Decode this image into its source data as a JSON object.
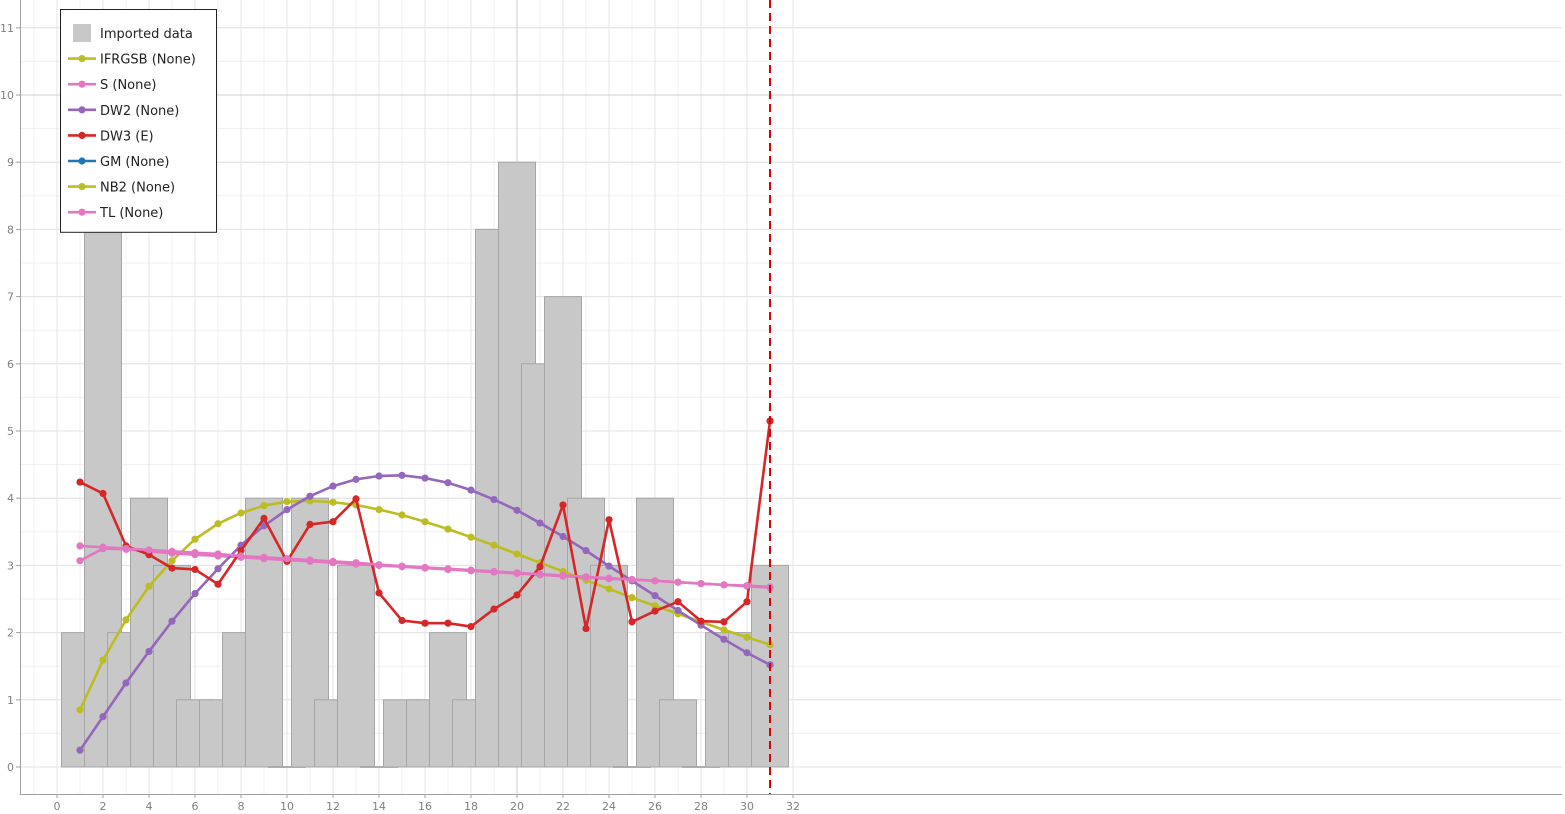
{
  "chart_data": {
    "type": "bar",
    "xlim": [
      -8,
      32
    ],
    "ylim": [
      -0.4,
      11.4
    ],
    "x_ticks": [
      0,
      2,
      4,
      6,
      8,
      10,
      12,
      14,
      16,
      18,
      20,
      22,
      24,
      26,
      28,
      30,
      32
    ],
    "y_ticks": [
      0,
      1,
      2,
      3,
      4,
      5,
      6,
      7,
      8,
      9,
      10,
      11
    ],
    "grid": true,
    "legend_position": "top-left",
    "bars": {
      "name": "Imported data",
      "color": "#c8c8c8",
      "x": [
        1,
        2,
        3,
        4,
        5,
        6,
        7,
        8,
        9,
        10,
        11,
        12,
        13,
        14,
        15,
        16,
        17,
        18,
        19,
        20,
        21,
        22,
        23,
        24,
        25,
        26,
        27,
        28,
        29,
        30,
        31
      ],
      "values": [
        2,
        8,
        2,
        4,
        3,
        1,
        1,
        2,
        4,
        0,
        4,
        1,
        3,
        0,
        1,
        1,
        2,
        1,
        8,
        9,
        6,
        7,
        4,
        3,
        0,
        4,
        1,
        0,
        2,
        2,
        3
      ]
    },
    "series": [
      {
        "name": "IFRGSB (None)",
        "color": "#bcbd22",
        "x": [
          1,
          2,
          3,
          4,
          5,
          6,
          7,
          8,
          9,
          10,
          11,
          12,
          13,
          14,
          15,
          16,
          17,
          18,
          19,
          20,
          21,
          22,
          23,
          24,
          25,
          26,
          27,
          28,
          29,
          30,
          31
        ],
        "values": [
          0.85,
          1.59,
          2.19,
          2.69,
          3.07,
          3.39,
          3.62,
          3.78,
          3.89,
          3.95,
          3.96,
          3.94,
          3.9,
          3.83,
          3.75,
          3.65,
          3.54,
          3.42,
          3.3,
          3.17,
          3.04,
          2.91,
          2.78,
          2.65,
          2.52,
          2.4,
          2.28,
          2.16,
          2.04,
          1.93,
          1.82
        ]
      },
      {
        "name": "S (None)",
        "color": "#e377c2",
        "x": [
          1,
          2,
          3,
          4,
          5,
          6,
          7,
          8,
          9,
          10,
          11,
          12,
          13,
          14,
          15,
          16,
          17,
          18,
          19,
          20,
          21,
          22,
          23,
          24,
          25,
          26,
          27,
          28,
          29,
          30,
          31
        ],
        "values": [
          3.07,
          3.25,
          3.24,
          3.21,
          3.18,
          3.16,
          3.14,
          3.12,
          3.1,
          3.08,
          3.06,
          3.04,
          3.02,
          3.0,
          2.98,
          2.96,
          2.94,
          2.92,
          2.9,
          2.88,
          2.86,
          2.84,
          2.82,
          2.8,
          2.79,
          2.77,
          2.75,
          2.73,
          2.71,
          2.69,
          2.67
        ]
      },
      {
        "name": "DW2 (None)",
        "color": "#9467bd",
        "x": [
          1,
          2,
          3,
          4,
          5,
          6,
          7,
          8,
          9,
          10,
          11,
          12,
          13,
          14,
          15,
          16,
          17,
          18,
          19,
          20,
          21,
          22,
          23,
          24,
          25,
          26,
          27,
          28,
          29,
          30,
          31
        ],
        "values": [
          0.25,
          0.75,
          1.25,
          1.72,
          2.17,
          2.58,
          2.95,
          3.3,
          3.59,
          3.83,
          4.03,
          4.18,
          4.28,
          4.33,
          4.34,
          4.3,
          4.23,
          4.12,
          3.98,
          3.82,
          3.63,
          3.43,
          3.22,
          2.99,
          2.77,
          2.55,
          2.33,
          2.11,
          1.9,
          1.7,
          1.52
        ]
      },
      {
        "name": "DW3 (E)",
        "color": "#d62728",
        "x": [
          1,
          2,
          3,
          4,
          5,
          6,
          7,
          8,
          9,
          10,
          11,
          12,
          13,
          14,
          15,
          16,
          17,
          18,
          19,
          20,
          21,
          22,
          23,
          24,
          25,
          26,
          27,
          28,
          29,
          30,
          31
        ],
        "values": [
          4.24,
          4.07,
          3.29,
          3.16,
          2.96,
          2.94,
          2.72,
          3.22,
          3.7,
          3.06,
          3.61,
          3.65,
          3.99,
          2.59,
          2.18,
          2.14,
          2.14,
          2.09,
          2.35,
          2.56,
          2.98,
          3.9,
          2.06,
          3.68,
          2.16,
          2.32,
          2.46,
          2.17,
          2.16,
          2.46,
          5.15
        ]
      },
      {
        "name": "GM (None)",
        "color": "#1f77b4",
        "x": [],
        "values": []
      },
      {
        "name": "NB2 (None)",
        "color": "#bcbd22",
        "x": [],
        "values": []
      },
      {
        "name": "TL (None)",
        "color": "#e377c2",
        "x": [
          1,
          2,
          3,
          4,
          5,
          6,
          7,
          8,
          9,
          10,
          11,
          12,
          13,
          14,
          15,
          16,
          17,
          18,
          19,
          20,
          21,
          22,
          23,
          24,
          25,
          26,
          27,
          28,
          29,
          30,
          31
        ],
        "values": [
          3.29,
          3.27,
          3.25,
          3.23,
          3.21,
          3.19,
          3.17,
          3.14,
          3.12,
          3.1,
          3.08,
          3.06,
          3.04,
          3.01,
          2.99,
          2.97,
          2.95,
          2.93,
          2.91,
          2.89,
          2.87,
          2.85,
          2.83,
          2.81,
          2.79,
          2.77,
          2.75,
          2.73,
          2.71,
          2.7,
          2.68
        ]
      }
    ],
    "vertical_marker": {
      "x": 31,
      "color": "#e00000",
      "style": "dashed"
    }
  }
}
